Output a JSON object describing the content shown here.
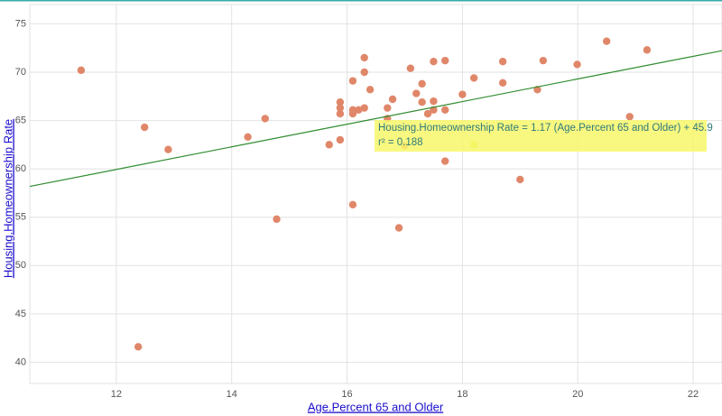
{
  "chart_data": {
    "type": "scatter",
    "x_label": "Age.Percent 65 and Older",
    "y_label": "Housing.Homeownership Rate",
    "xlim": [
      10.5,
      22.5
    ],
    "ylim": [
      37.8,
      77
    ],
    "xticks": [
      12,
      14,
      16,
      18,
      20,
      22
    ],
    "yticks": [
      40,
      45,
      50,
      55,
      60,
      65,
      70,
      75
    ],
    "grid": true,
    "color": "#e0876a",
    "highlight": {
      "index": 39,
      "color": "#f2e84c"
    },
    "x": [
      11.39,
      12.49,
      12.38,
      12.9,
      14.28,
      14.58,
      14.78,
      15.69,
      15.88,
      15.88,
      15.88,
      15.88,
      16.1,
      16.1,
      16.1,
      16.1,
      16.2,
      16.3,
      16.3,
      16.3,
      16.4,
      16.7,
      16.7,
      16.79,
      16.9,
      17.0,
      17.1,
      17.2,
      17.3,
      17.3,
      17.4,
      17.5,
      17.5,
      17.5,
      17.7,
      17.7,
      17.7,
      18.0,
      18.2,
      18.2,
      18.7,
      18.7,
      19.0,
      19.3,
      19.4,
      19.99,
      20.5,
      20.9,
      21.2
    ],
    "y": [
      70.2,
      64.3,
      41.6,
      62.0,
      63.3,
      65.2,
      54.8,
      62.5,
      63.0,
      66.9,
      66.3,
      65.7,
      69.1,
      66.1,
      65.7,
      56.3,
      66.1,
      71.5,
      70.0,
      66.3,
      68.2,
      66.3,
      65.2,
      67.2,
      53.9,
      62.4,
      70.4,
      67.8,
      68.8,
      66.9,
      65.7,
      67.0,
      71.1,
      66.1,
      71.2,
      66.1,
      60.8,
      67.7,
      69.4,
      62.5,
      71.1,
      68.9,
      58.9,
      68.2,
      71.2,
      70.8,
      73.2,
      65.4,
      72.3
    ],
    "trendline": {
      "slope": 1.17,
      "intercept": 45.9,
      "color": "#2e8b2e"
    },
    "annotation": {
      "equation": "Housing.Homeownership Rate = 1.17 (Age.Percent 65 and Older) + 45.9",
      "r2": "r² = 0.188",
      "background": "#f7f76a"
    }
  }
}
